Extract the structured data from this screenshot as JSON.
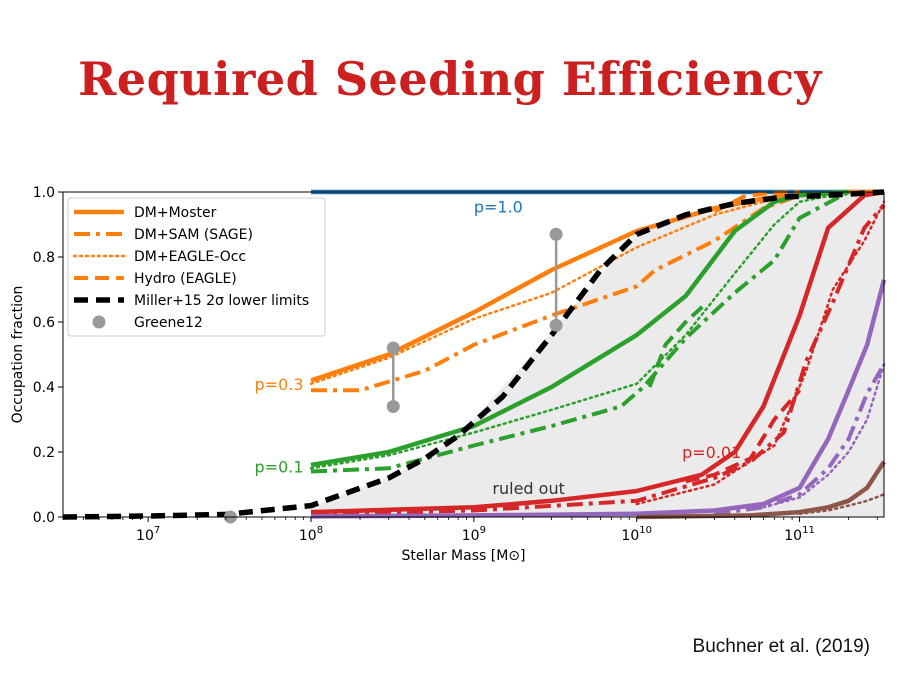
{
  "slide": {
    "title": "Required Seeding Efficiency",
    "citation": "Buchner et al. (2019)"
  },
  "colors": {
    "title": "#cc1f1f",
    "p1": "#1f77b4",
    "p03": "#ff7f0e",
    "p01": "#2ca02c",
    "p001": "#d62728",
    "purple": "#9467bd",
    "brown": "#8c564b",
    "black": "#000000",
    "gray": "#999999",
    "region": "#ebebeb"
  },
  "chart_data": {
    "type": "line",
    "xscale": "log",
    "xlim": [
      3000000.0,
      330000000000.0
    ],
    "ylim": [
      0,
      1
    ],
    "xlabel": "Stellar Mass [M⊙]",
    "ylabel": "Occupation fraction",
    "xticks": [
      {
        "value": 10000000.0,
        "base": "10",
        "exp": "7"
      },
      {
        "value": 100000000.0,
        "base": "10",
        "exp": "8"
      },
      {
        "value": 1000000000.0,
        "base": "10",
        "exp": "9"
      },
      {
        "value": 10000000000.0,
        "base": "10",
        "exp": "10"
      },
      {
        "value": 100000000000.0,
        "base": "10",
        "exp": "11"
      }
    ],
    "yticks": [
      "0.0",
      "0.2",
      "0.4",
      "0.6",
      "0.8",
      "1.0"
    ],
    "legend": {
      "position": "top-left",
      "entries": [
        {
          "label": "DM+Moster",
          "style": "solid",
          "color": "#ff7f0e"
        },
        {
          "label": "DM+SAM (SAGE)",
          "style": "dashdot",
          "color": "#ff7f0e"
        },
        {
          "label": "DM+EAGLE-Occ",
          "style": "dotted",
          "color": "#ff7f0e"
        },
        {
          "label": "Hydro (EAGLE)",
          "style": "dashed",
          "color": "#ff7f0e"
        },
        {
          "label": "Miller+15 2σ lower limits",
          "style": "bold-dashed",
          "color": "#000000"
        },
        {
          "label": "Greene12",
          "style": "marker",
          "color": "#999999"
        }
      ]
    },
    "annotations": [
      {
        "text": "p=1.0",
        "x": 1000000000.0,
        "y": 0.955,
        "color": "#1f77b4"
      },
      {
        "text": "p=0.3",
        "x": 45000000.0,
        "y": 0.41,
        "color": "#ff7f0e"
      },
      {
        "text": "p=0.1",
        "x": 45000000.0,
        "y": 0.155,
        "color": "#2ca02c"
      },
      {
        "text": "p=0.01",
        "x": 19000000000.0,
        "y": 0.2,
        "color": "#d62728"
      },
      {
        "text": "ruled out",
        "x": 1300000000.0,
        "y": 0.09,
        "color": "#333333"
      }
    ],
    "ruled_out_region": {
      "x": [
        100000000.0,
        500000000.0,
        1000000000.0,
        3000000000.0,
        10000000000.0,
        20000000000.0,
        40000000000.0,
        70000000000.0,
        100000000000.0,
        200000000000.0,
        330000000000.0
      ],
      "y": [
        0.03,
        0.17,
        0.3,
        0.57,
        0.87,
        0.935,
        0.965,
        0.985,
        0.99,
        1.0,
        1.0
      ]
    },
    "series": [
      {
        "group": "p=1.0",
        "style": "solid",
        "color": "#1f77b4",
        "x": [
          100000000.0,
          330000000000.0
        ],
        "y": [
          1.0,
          1.0
        ]
      },
      {
        "group": "p=0.3",
        "style": "solid",
        "color": "#ff7f0e",
        "x": [
          100000000.0,
          300000000.0,
          1000000000.0,
          3000000000.0,
          10000000000.0,
          30000000000.0,
          60000000000.0,
          100000000000.0,
          200000000000.0,
          330000000000.0
        ],
        "y": [
          0.42,
          0.5,
          0.63,
          0.76,
          0.88,
          0.95,
          0.98,
          0.99,
          1.0,
          1.0
        ]
      },
      {
        "group": "p=0.3",
        "style": "dashdot",
        "color": "#ff7f0e",
        "x": [
          100000000.0,
          200000000.0,
          500000000.0,
          1000000000.0,
          3000000000.0,
          10000000000.0,
          13000000000.0,
          30000000000.0,
          60000000000.0,
          100000000000.0,
          200000000000.0
        ],
        "y": [
          0.39,
          0.39,
          0.45,
          0.53,
          0.62,
          0.71,
          0.76,
          0.85,
          0.95,
          0.99,
          1.0
        ]
      },
      {
        "group": "p=0.3",
        "style": "dotted",
        "color": "#ff7f0e",
        "x": [
          100000000.0,
          300000000.0,
          1000000000.0,
          3000000000.0,
          10000000000.0,
          30000000000.0,
          60000000000.0,
          100000000000.0,
          200000000000.0
        ],
        "y": [
          0.41,
          0.49,
          0.61,
          0.69,
          0.83,
          0.93,
          0.97,
          0.99,
          1.0
        ]
      },
      {
        "group": "p=0.3",
        "style": "dashed",
        "color": "#ff7f0e",
        "x": [
          30000000000.0,
          45000000000.0,
          60000000000.0,
          100000000000.0
        ],
        "y": [
          0.94,
          0.985,
          0.995,
          1.0
        ]
      },
      {
        "group": "p=0.1",
        "style": "solid",
        "color": "#2ca02c",
        "x": [
          100000000.0,
          300000000.0,
          1000000000.0,
          3000000000.0,
          10000000000.0,
          20000000000.0,
          40000000000.0,
          70000000000.0,
          100000000000.0,
          200000000000.0
        ],
        "y": [
          0.16,
          0.2,
          0.28,
          0.4,
          0.56,
          0.68,
          0.88,
          0.97,
          0.99,
          1.0
        ]
      },
      {
        "group": "p=0.1",
        "style": "dashdot",
        "color": "#2ca02c",
        "x": [
          100000000.0,
          300000000.0,
          1000000000.0,
          3000000000.0,
          8000000000.0,
          11000000000.0,
          20000000000.0,
          40000000000.0,
          70000000000.0,
          100000000000.0,
          200000000000.0
        ],
        "y": [
          0.14,
          0.15,
          0.22,
          0.28,
          0.34,
          0.4,
          0.55,
          0.69,
          0.79,
          0.92,
          1.0
        ]
      },
      {
        "group": "p=0.1",
        "style": "dotted",
        "color": "#2ca02c",
        "x": [
          100000000.0,
          300000000.0,
          1000000000.0,
          3000000000.0,
          10000000000.0,
          20000000000.0,
          40000000000.0,
          70000000000.0,
          100000000000.0,
          200000000000.0
        ],
        "y": [
          0.15,
          0.19,
          0.26,
          0.33,
          0.41,
          0.56,
          0.75,
          0.9,
          0.97,
          1.0
        ]
      },
      {
        "group": "p=0.1",
        "style": "dashed",
        "color": "#2ca02c",
        "x": [
          12000000000.0,
          15000000000.0,
          20000000000.0,
          27000000000.0
        ],
        "y": [
          0.4,
          0.53,
          0.6,
          0.66
        ]
      },
      {
        "group": "p=0.01",
        "style": "solid",
        "color": "#d62728",
        "x": [
          100000000.0,
          1000000000.0,
          3000000000.0,
          10000000000.0,
          25000000000.0,
          40000000000.0,
          60000000000.0,
          100000000000.0,
          150000000000.0,
          250000000000.0,
          330000000000.0
        ],
        "y": [
          0.015,
          0.03,
          0.05,
          0.08,
          0.13,
          0.2,
          0.34,
          0.62,
          0.89,
          0.99,
          1.0
        ]
      },
      {
        "group": "p=0.01",
        "style": "dashdot",
        "color": "#d62728",
        "x": [
          100000000.0,
          1000000000.0,
          10000000000.0,
          30000000000.0,
          50000000000.0,
          80000000000.0,
          110000000000.0,
          160000000000.0,
          250000000000.0,
          330000000000.0
        ],
        "y": [
          0.01,
          0.02,
          0.05,
          0.12,
          0.17,
          0.26,
          0.48,
          0.66,
          0.89,
          0.96
        ]
      },
      {
        "group": "p=0.01",
        "style": "dotted",
        "color": "#d62728",
        "x": [
          10000000000.0,
          30000000000.0,
          70000000000.0,
          110000000000.0,
          160000000000.0,
          250000000000.0,
          330000000000.0
        ],
        "y": [
          0.04,
          0.1,
          0.22,
          0.45,
          0.7,
          0.85,
          0.97
        ]
      },
      {
        "group": "p=0.01",
        "style": "dashed",
        "color": "#d62728",
        "x": [
          20000000000.0,
          30000000000.0,
          50000000000.0,
          70000000000.0,
          100000000000.0
        ],
        "y": [
          0.11,
          0.13,
          0.18,
          0.3,
          0.39
        ]
      },
      {
        "group": "p=0.001",
        "style": "solid",
        "color": "#9467bd",
        "x": [
          100000000.0,
          1000000000.0,
          10000000000.0,
          30000000000.0,
          60000000000.0,
          100000000000.0,
          150000000000.0,
          200000000000.0,
          260000000000.0,
          330000000000.0
        ],
        "y": [
          0.002,
          0.005,
          0.01,
          0.02,
          0.04,
          0.09,
          0.24,
          0.39,
          0.53,
          0.73
        ]
      },
      {
        "group": "p=0.001",
        "style": "dashdot",
        "color": "#9467bd",
        "x": [
          30000000000.0,
          60000000000.0,
          100000000000.0,
          150000000000.0,
          200000000000.0,
          260000000000.0,
          330000000000.0
        ],
        "y": [
          0.01,
          0.03,
          0.07,
          0.15,
          0.24,
          0.38,
          0.47
        ]
      },
      {
        "group": "p=0.001",
        "style": "dotted",
        "color": "#9467bd",
        "x": [
          60000000000.0,
          100000000000.0,
          150000000000.0,
          200000000000.0,
          260000000000.0,
          330000000000.0
        ],
        "y": [
          0.03,
          0.06,
          0.13,
          0.2,
          0.3,
          0.47
        ]
      },
      {
        "group": "p=0.0001",
        "style": "solid",
        "color": "#8c564b",
        "x": [
          10000000000.0,
          50000000000.0,
          100000000000.0,
          150000000000.0,
          200000000000.0,
          260000000000.0,
          330000000000.0
        ],
        "y": [
          0.0,
          0.005,
          0.015,
          0.03,
          0.05,
          0.09,
          0.17
        ]
      },
      {
        "group": "p=0.0001",
        "style": "dotted",
        "color": "#8c564b",
        "x": [
          100000000000.0,
          150000000000.0,
          200000000000.0,
          260000000000.0,
          330000000000.0
        ],
        "y": [
          0.01,
          0.02,
          0.035,
          0.05,
          0.07
        ]
      },
      {
        "group": "Miller+15",
        "style": "bold-dashed",
        "color": "#000000",
        "x": [
          3000000.0,
          10000000.0,
          30000000.0,
          100000000.0,
          300000000.0,
          500000000.0,
          800000000.0,
          1500000000.0,
          3000000000.0,
          6000000000.0,
          10000000000.0,
          20000000000.0,
          40000000000.0,
          80000000000.0,
          150000000000.0,
          330000000000.0
        ],
        "y": [
          0.0,
          0.003,
          0.008,
          0.035,
          0.12,
          0.18,
          0.25,
          0.37,
          0.56,
          0.76,
          0.87,
          0.93,
          0.965,
          0.985,
          0.99,
          1.0
        ]
      }
    ],
    "greene12": [
      {
        "x": 320000000.0,
        "y_low": 0.34,
        "y_high": 0.52
      },
      {
        "x": 3200000000.0,
        "y_low": 0.59,
        "y_high": 0.87
      },
      {
        "x": 32000000.0,
        "y_low": 0.0,
        "y_high": 0.0
      }
    ]
  }
}
